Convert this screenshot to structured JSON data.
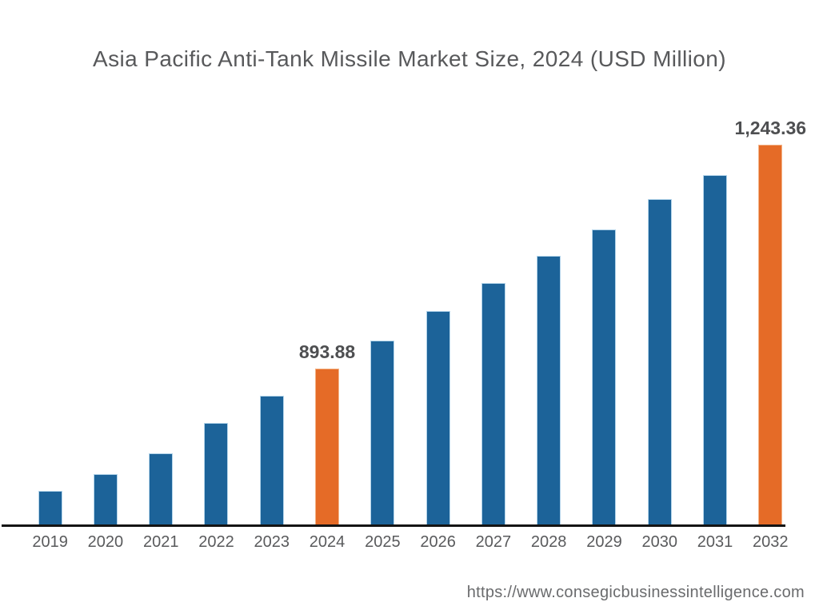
{
  "page": {
    "background_color": "#ffffff"
  },
  "header": {
    "title": "Asia Pacific Anti-Tank Missile Market Size, 2024 (USD Million)"
  },
  "chart_data": {
    "type": "bar",
    "title": "Asia Pacific Anti-Tank Missile Market Size, 2024 (USD Million)",
    "xlabel": "",
    "ylabel": "",
    "grid": false,
    "legend": false,
    "y_axis_shown": false,
    "baseline_value_estimate": 650,
    "categories": [
      "2019",
      "2020",
      "2021",
      "2022",
      "2023",
      "2024",
      "2025",
      "2026",
      "2027",
      "2028",
      "2029",
      "2030",
      "2031",
      "2032"
    ],
    "values": [
      704,
      730,
      762,
      810,
      852,
      893.88,
      938,
      984,
      1028,
      1070,
      1111,
      1158,
      1196,
      1243.36
    ],
    "value_labels": [
      "",
      "",
      "",
      "",
      "",
      "893.88",
      "",
      "",
      "",
      "",
      "",
      "",
      "",
      "1,243.36"
    ],
    "highlighted_categories": [
      "2024",
      "2032"
    ],
    "colors": {
      "bar": "#1c6399",
      "bar_edge": "#b3d4ea",
      "highlight": "#e56b27",
      "highlight_edge": "#f3b488",
      "axis": "#141414",
      "title_text": "#58595b",
      "tick_text": "#595a5c",
      "value_label_text": "#4e4f51"
    }
  },
  "footer": {
    "url": "https://www.consegicbusinessintelligence.com"
  }
}
